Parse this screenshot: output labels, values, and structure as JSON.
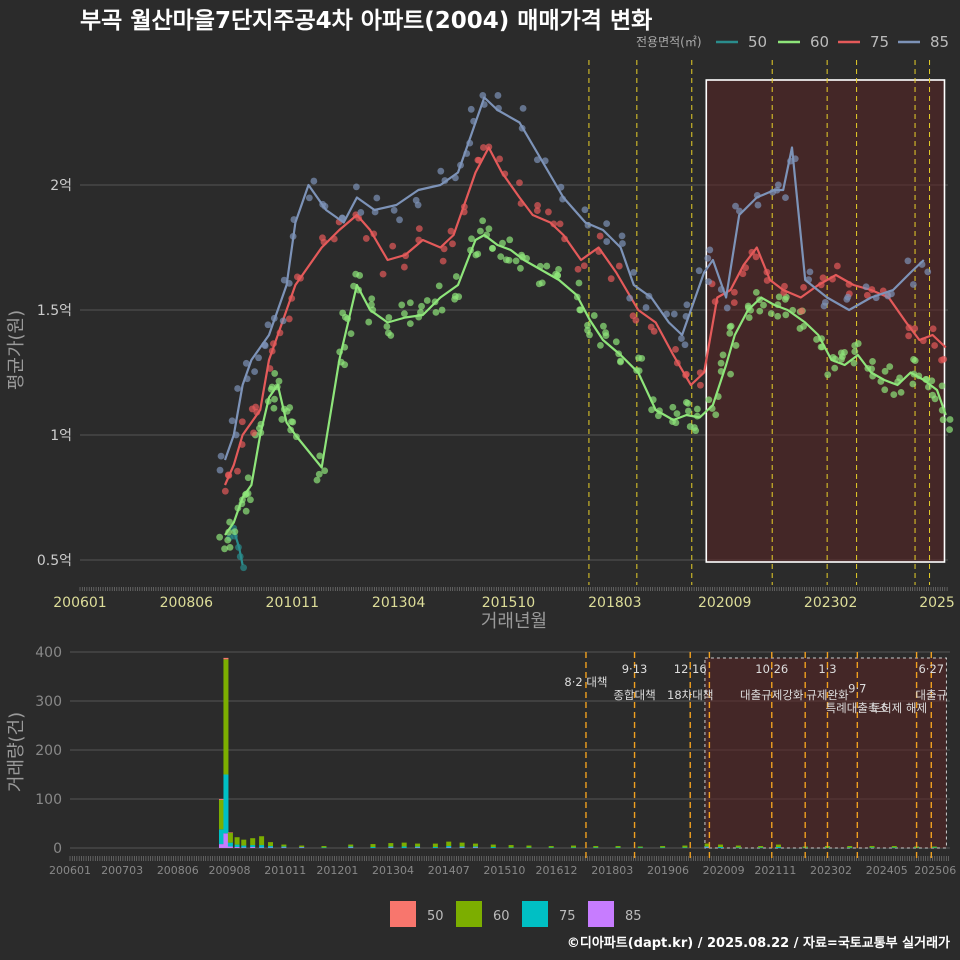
{
  "title": "부곡 월산마을7단지주공4차 아파트(2004) 매매가격 변화",
  "footer": "©디아파트(dapt.kr) / 2025.08.22 / 자료=국토교통부 실거래가",
  "colors": {
    "background": "#2b2b2b",
    "s50": "#2a8c8c",
    "s60": "#8ee57a",
    "s75": "#e45a5a",
    "s85": "#7d93b8",
    "bar50": "#f8766d",
    "bar60": "#7cae00",
    "bar75": "#00bfc4",
    "bar85": "#c77cff",
    "policy": "#e8d028",
    "highlight": "#5a2424"
  },
  "chart_data": [
    {
      "type": "line",
      "id": "price",
      "title": "부곡 월산마을7단지주공4차 아파트(2004) 매매가격 변화",
      "xlabel": "거래년월",
      "ylabel": "평균가(원)",
      "legend_title": "전용면적(㎡)",
      "legend_position": "top-right",
      "xlim": [
        2006.0,
        2025.75
      ],
      "ylim": [
        0.4,
        2.5
      ],
      "yticks": [
        0.5,
        1.0,
        1.5,
        2.0
      ],
      "ytick_labels": [
        "0.5억",
        "1억",
        "1.5억",
        "2억"
      ],
      "xtick_labels": [
        "200601",
        "200806",
        "201011",
        "201304",
        "201510",
        "201803",
        "202009",
        "202302",
        "2025"
      ],
      "xtick_values": [
        2006.0,
        2008.42,
        2010.83,
        2013.25,
        2015.75,
        2018.17,
        2020.67,
        2023.08,
        2025.5
      ],
      "highlight_range": [
        2020.25,
        2025.67
      ],
      "policy_lines": [
        2017.58,
        2018.67,
        2019.92,
        2021.75,
        2023.0,
        2023.67,
        2025.0,
        2025.33
      ],
      "series": [
        {
          "name": "50",
          "x": [
            2009.5,
            2009.62,
            2009.7
          ],
          "y": [
            0.62,
            0.55,
            0.48
          ]
        },
        {
          "name": "60",
          "x": [
            2009.3,
            2009.5,
            2009.7,
            2009.9,
            2010.1,
            2010.3,
            2010.5,
            2010.7,
            2010.9,
            2011.5,
            2011.9,
            2012.1,
            2012.3,
            2012.6,
            2013.0,
            2013.4,
            2013.8,
            2014.2,
            2014.6,
            2015.0,
            2015.2,
            2015.5,
            2015.8,
            2016.1,
            2016.5,
            2016.9,
            2017.3,
            2017.6,
            2017.9,
            2018.3,
            2018.7,
            2019.1,
            2019.5,
            2019.8,
            2020.1,
            2020.4,
            2020.7,
            2020.9,
            2021.2,
            2021.5,
            2021.8,
            2022.1,
            2022.5,
            2022.8,
            2023.1,
            2023.4,
            2023.7,
            2024.0,
            2024.3,
            2024.6,
            2024.9,
            2025.2,
            2025.5,
            2025.7
          ],
          "y": [
            0.6,
            0.65,
            0.75,
            0.8,
            1.0,
            1.15,
            1.2,
            1.05,
            1.0,
            0.87,
            1.3,
            1.45,
            1.6,
            1.5,
            1.45,
            1.47,
            1.48,
            1.55,
            1.6,
            1.78,
            1.8,
            1.76,
            1.74,
            1.7,
            1.66,
            1.62,
            1.56,
            1.46,
            1.38,
            1.32,
            1.25,
            1.1,
            1.06,
            1.08,
            1.07,
            1.12,
            1.28,
            1.4,
            1.5,
            1.55,
            1.52,
            1.5,
            1.45,
            1.4,
            1.3,
            1.28,
            1.32,
            1.25,
            1.22,
            1.2,
            1.25,
            1.22,
            1.18,
            1.08
          ]
        },
        {
          "name": "75",
          "x": [
            2009.3,
            2009.5,
            2009.7,
            2009.9,
            2010.1,
            2010.3,
            2010.5,
            2010.7,
            2010.9,
            2011.5,
            2011.9,
            2012.3,
            2012.6,
            2013.0,
            2013.4,
            2013.8,
            2014.2,
            2014.5,
            2014.8,
            2015.0,
            2015.3,
            2015.6,
            2016.0,
            2016.3,
            2016.7,
            2017.0,
            2017.4,
            2017.8,
            2018.2,
            2018.7,
            2019.1,
            2019.5,
            2019.9,
            2020.2,
            2020.5,
            2020.8,
            2021.1,
            2021.4,
            2021.7,
            2022.0,
            2022.4,
            2022.8,
            2023.2,
            2023.6,
            2024.0,
            2024.4,
            2024.8,
            2025.1,
            2025.4,
            2025.7
          ],
          "y": [
            0.8,
            0.88,
            1.0,
            1.05,
            1.1,
            1.3,
            1.4,
            1.5,
            1.6,
            1.75,
            1.82,
            1.88,
            1.82,
            1.7,
            1.72,
            1.78,
            1.75,
            1.8,
            1.95,
            2.05,
            2.15,
            2.05,
            1.95,
            1.88,
            1.85,
            1.8,
            1.7,
            1.75,
            1.65,
            1.5,
            1.45,
            1.32,
            1.2,
            1.25,
            1.55,
            1.58,
            1.68,
            1.75,
            1.62,
            1.58,
            1.55,
            1.6,
            1.64,
            1.6,
            1.58,
            1.55,
            1.45,
            1.38,
            1.4,
            1.35
          ]
        },
        {
          "name": "85",
          "x": [
            2009.3,
            2009.5,
            2009.7,
            2009.9,
            2010.1,
            2010.3,
            2010.5,
            2010.7,
            2010.9,
            2011.2,
            2011.6,
            2012.0,
            2012.3,
            2012.7,
            2013.2,
            2013.7,
            2014.2,
            2014.6,
            2014.8,
            2015.0,
            2015.2,
            2015.5,
            2016.0,
            2016.5,
            2017.0,
            2017.5,
            2017.9,
            2018.3,
            2018.6,
            2019.0,
            2019.4,
            2019.7,
            2019.9,
            2020.2,
            2020.4,
            2020.7,
            2021.0,
            2021.4,
            2021.8,
            2022.0,
            2022.2,
            2022.5,
            2023.0,
            2023.5,
            2024.0,
            2024.5,
            2024.9,
            2025.2
          ],
          "y": [
            0.9,
            1.0,
            1.2,
            1.3,
            1.35,
            1.4,
            1.5,
            1.6,
            1.85,
            2.0,
            1.9,
            1.85,
            1.95,
            1.9,
            1.92,
            1.98,
            2.0,
            2.05,
            2.15,
            2.25,
            2.35,
            2.3,
            2.25,
            2.1,
            1.95,
            1.85,
            1.82,
            1.75,
            1.6,
            1.55,
            1.45,
            1.4,
            1.5,
            1.65,
            1.7,
            1.55,
            1.88,
            1.95,
            1.98,
            1.98,
            2.15,
            1.62,
            1.55,
            1.5,
            1.55,
            1.58,
            1.65,
            1.7
          ]
        }
      ]
    },
    {
      "type": "bar",
      "id": "volume",
      "ylabel": "거래량(건)",
      "xlim": [
        2006.0,
        2025.75
      ],
      "ylim": [
        0,
        420
      ],
      "yticks": [
        0,
        100,
        200,
        300,
        400
      ],
      "xtick_labels": [
        "200601",
        "200703",
        "200806",
        "200908",
        "201011",
        "201201",
        "201304",
        "201407",
        "201510",
        "201612",
        "201803",
        "201906",
        "202009",
        "202111",
        "202302",
        "202405",
        "202506"
      ],
      "xtick_values": [
        2006.0,
        2007.17,
        2008.42,
        2009.58,
        2010.83,
        2012.0,
        2013.25,
        2014.5,
        2015.75,
        2016.92,
        2018.17,
        2019.42,
        2020.67,
        2021.83,
        2023.08,
        2024.33,
        2025.42
      ],
      "legend_position": "bottom",
      "series_names": [
        "50",
        "60",
        "75",
        "85"
      ],
      "bars": [
        {
          "x": 2009.4,
          "values": [
            2,
            60,
            30,
            8
          ]
        },
        {
          "x": 2009.5,
          "values": [
            3,
            235,
            120,
            30
          ]
        },
        {
          "x": 2009.6,
          "values": [
            1,
            20,
            8,
            3
          ]
        },
        {
          "x": 2009.75,
          "values": [
            0,
            15,
            5,
            2
          ]
        },
        {
          "x": 2009.9,
          "values": [
            0,
            12,
            4,
            1
          ]
        },
        {
          "x": 2010.1,
          "values": [
            0,
            14,
            4,
            2
          ]
        },
        {
          "x": 2010.3,
          "values": [
            0,
            18,
            5,
            1
          ]
        },
        {
          "x": 2010.5,
          "values": [
            0,
            8,
            3,
            1
          ]
        },
        {
          "x": 2010.8,
          "values": [
            0,
            4,
            2,
            1
          ]
        },
        {
          "x": 2011.2,
          "values": [
            0,
            3,
            1,
            1
          ]
        },
        {
          "x": 2011.7,
          "values": [
            0,
            3,
            1,
            0
          ]
        },
        {
          "x": 2012.3,
          "values": [
            0,
            4,
            2,
            1
          ]
        },
        {
          "x": 2012.8,
          "values": [
            0,
            6,
            2,
            0
          ]
        },
        {
          "x": 2013.2,
          "values": [
            0,
            7,
            2,
            1
          ]
        },
        {
          "x": 2013.5,
          "values": [
            0,
            8,
            3,
            0
          ]
        },
        {
          "x": 2013.8,
          "values": [
            0,
            6,
            2,
            1
          ]
        },
        {
          "x": 2014.2,
          "values": [
            0,
            7,
            2,
            0
          ]
        },
        {
          "x": 2014.5,
          "values": [
            0,
            9,
            3,
            1
          ]
        },
        {
          "x": 2014.8,
          "values": [
            0,
            8,
            2,
            1
          ]
        },
        {
          "x": 2015.1,
          "values": [
            0,
            6,
            2,
            1
          ]
        },
        {
          "x": 2015.5,
          "values": [
            0,
            5,
            2,
            0
          ]
        },
        {
          "x": 2015.9,
          "values": [
            0,
            5,
            1,
            0
          ]
        },
        {
          "x": 2016.3,
          "values": [
            0,
            4,
            1,
            0
          ]
        },
        {
          "x": 2016.8,
          "values": [
            0,
            3,
            1,
            0
          ]
        },
        {
          "x": 2017.3,
          "values": [
            0,
            4,
            1,
            0
          ]
        },
        {
          "x": 2017.8,
          "values": [
            0,
            3,
            1,
            0
          ]
        },
        {
          "x": 2018.3,
          "values": [
            0,
            3,
            1,
            0
          ]
        },
        {
          "x": 2018.8,
          "values": [
            0,
            2,
            1,
            0
          ]
        },
        {
          "x": 2019.3,
          "values": [
            0,
            3,
            1,
            0
          ]
        },
        {
          "x": 2019.8,
          "values": [
            0,
            4,
            1,
            0
          ]
        },
        {
          "x": 2020.3,
          "values": [
            0,
            6,
            2,
            1
          ]
        },
        {
          "x": 2020.6,
          "values": [
            0,
            5,
            2,
            0
          ]
        },
        {
          "x": 2021.0,
          "values": [
            0,
            4,
            1,
            0
          ]
        },
        {
          "x": 2021.5,
          "values": [
            0,
            3,
            1,
            0
          ]
        },
        {
          "x": 2021.9,
          "values": [
            0,
            5,
            2,
            0
          ]
        },
        {
          "x": 2022.5,
          "values": [
            0,
            2,
            1,
            0
          ]
        },
        {
          "x": 2023.0,
          "values": [
            0,
            3,
            1,
            0
          ]
        },
        {
          "x": 2023.5,
          "values": [
            0,
            3,
            1,
            0
          ]
        },
        {
          "x": 2024.0,
          "values": [
            0,
            3,
            1,
            0
          ]
        },
        {
          "x": 2024.5,
          "values": [
            0,
            3,
            1,
            0
          ]
        },
        {
          "x": 2025.0,
          "values": [
            0,
            2,
            1,
            0
          ]
        },
        {
          "x": 2025.4,
          "values": [
            0,
            2,
            1,
            0
          ]
        }
      ],
      "highlight_range": [
        2020.25,
        2025.67
      ],
      "policy_lines": [
        2017.58,
        2018.67,
        2019.92,
        2020.35,
        2021.75,
        2022.5,
        2023.0,
        2023.67,
        2025.0,
        2025.33
      ],
      "annotations": [
        {
          "x": 2017.58,
          "row": 2,
          "text": "8·2 대책"
        },
        {
          "x": 2018.67,
          "row": 1,
          "text": "9·13"
        },
        {
          "x": 2018.67,
          "row": 3,
          "text": "종합대책"
        },
        {
          "x": 2019.92,
          "row": 1,
          "text": "12·16"
        },
        {
          "x": 2019.92,
          "row": 3,
          "text": "18차대책"
        },
        {
          "x": 2021.75,
          "row": 1,
          "text": "10·26"
        },
        {
          "x": 2021.75,
          "row": 3,
          "text": "대출규제강화"
        },
        {
          "x": 2023.0,
          "row": 1,
          "text": "1·3"
        },
        {
          "x": 2023.0,
          "row": 3,
          "text": "규제완화"
        },
        {
          "x": 2023.67,
          "row": 2.5,
          "text": "9·7"
        },
        {
          "x": 2023.67,
          "row": 4,
          "text": "특례대출축소"
        },
        {
          "x": 2024.6,
          "row": 4,
          "text": "토허제 해제"
        },
        {
          "x": 2025.33,
          "row": 1,
          "text": "6·27"
        },
        {
          "x": 2025.33,
          "row": 3,
          "text": "대출규"
        }
      ]
    }
  ]
}
